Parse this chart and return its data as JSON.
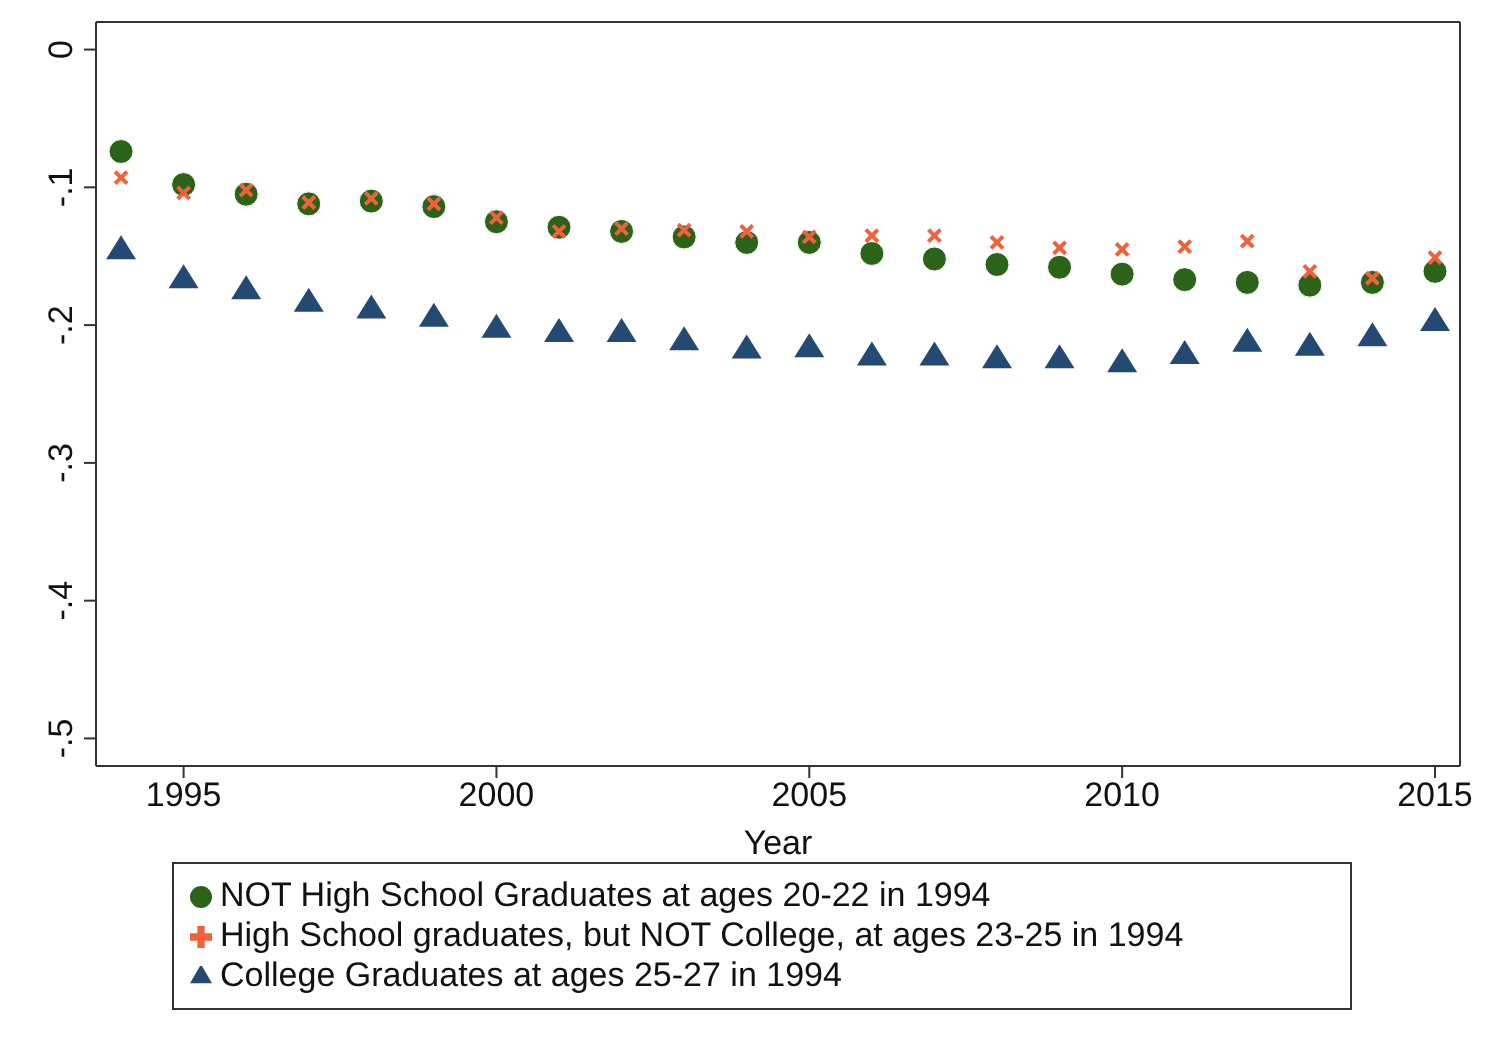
{
  "chart_data": {
    "type": "scatter",
    "xlabel": "Year",
    "x": [
      1994,
      1995,
      1996,
      1997,
      1998,
      1999,
      2000,
      2001,
      2002,
      2003,
      2004,
      2005,
      2006,
      2007,
      2008,
      2009,
      2010,
      2011,
      2012,
      2013,
      2014,
      2015
    ],
    "series": [
      {
        "name": "NOT High School Graduates at ages 20-22 in 1994",
        "color": "#2b6318",
        "marker": "circle",
        "values": [
          -0.074,
          -0.098,
          -0.105,
          -0.112,
          -0.11,
          -0.114,
          -0.125,
          -0.129,
          -0.132,
          -0.136,
          -0.14,
          -0.14,
          -0.148,
          -0.152,
          -0.156,
          -0.158,
          -0.163,
          -0.167,
          -0.169,
          -0.171,
          -0.169,
          -0.161
        ]
      },
      {
        "name": "High School graduates, but NOT College, at ages 23-25 in 1994",
        "color": "#f2613d",
        "marker": "cross",
        "values": [
          -0.093,
          -0.104,
          -0.102,
          -0.111,
          -0.108,
          -0.112,
          -0.122,
          -0.132,
          -0.13,
          -0.131,
          -0.132,
          -0.136,
          -0.135,
          -0.135,
          -0.14,
          -0.144,
          -0.145,
          -0.143,
          -0.139,
          -0.161,
          -0.166,
          -0.151
        ]
      },
      {
        "name": "College Graduates at ages 25-27 in 1994",
        "color": "#244a73",
        "marker": "triangle",
        "values": [
          -0.145,
          -0.166,
          -0.174,
          -0.183,
          -0.188,
          -0.194,
          -0.202,
          -0.205,
          -0.205,
          -0.211,
          -0.217,
          -0.216,
          -0.222,
          -0.222,
          -0.224,
          -0.224,
          -0.227,
          -0.221,
          -0.212,
          -0.215,
          -0.208,
          -0.197
        ]
      }
    ],
    "xlim": [
      1993.6,
      2015.4
    ],
    "xticks": [
      1995,
      2000,
      2005,
      2010,
      2015
    ],
    "ylim": [
      -0.52,
      0.02
    ],
    "yticks": [
      0,
      {
        "value": -0.1,
        "label": "-.1"
      },
      {
        "value": -0.2,
        "label": "-.2"
      },
      {
        "value": -0.3,
        "label": "-.3"
      },
      {
        "value": -0.4,
        "label": "-.4"
      },
      {
        "value": -0.5,
        "label": "-.5"
      }
    ],
    "grid": false,
    "legend": "bottom"
  }
}
